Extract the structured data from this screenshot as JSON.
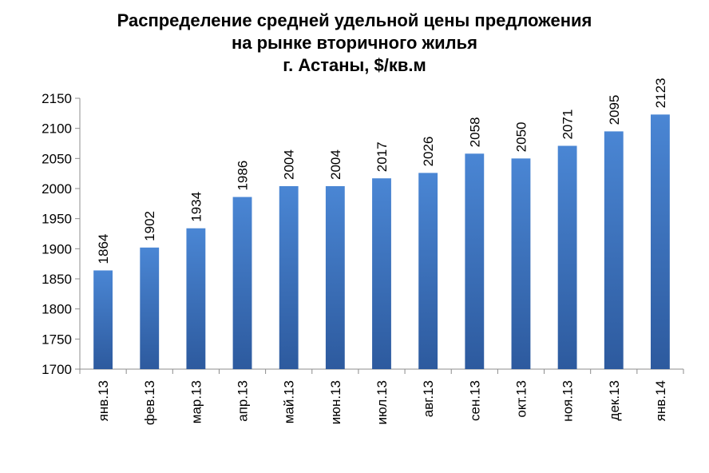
{
  "chart_data": {
    "type": "bar",
    "title_lines": [
      "Распределение средней удельной цены предложения",
      "на рынке вторичного жилья",
      "г. Астаны, $/кв.м"
    ],
    "categories": [
      "янв.13",
      "фев.13",
      "мар.13",
      "апр.13",
      "май.13",
      "июн.13",
      "июл.13",
      "авг.13",
      "сен.13",
      "окт.13",
      "ноя.13",
      "дек.13",
      "янв.14"
    ],
    "values": [
      1864,
      1902,
      1934,
      1986,
      2004,
      2004,
      2017,
      2026,
      2058,
      2050,
      2071,
      2095,
      2123
    ],
    "ylim": [
      1700,
      2150
    ],
    "yticks": [
      1700,
      1750,
      1800,
      1850,
      1900,
      1950,
      2000,
      2050,
      2100,
      2150
    ],
    "grid": false,
    "legend": "none",
    "colors": {
      "bar_top": "#4a86d4",
      "bar_bottom": "#2d5a9e",
      "axis": "#8c8c8c"
    }
  }
}
